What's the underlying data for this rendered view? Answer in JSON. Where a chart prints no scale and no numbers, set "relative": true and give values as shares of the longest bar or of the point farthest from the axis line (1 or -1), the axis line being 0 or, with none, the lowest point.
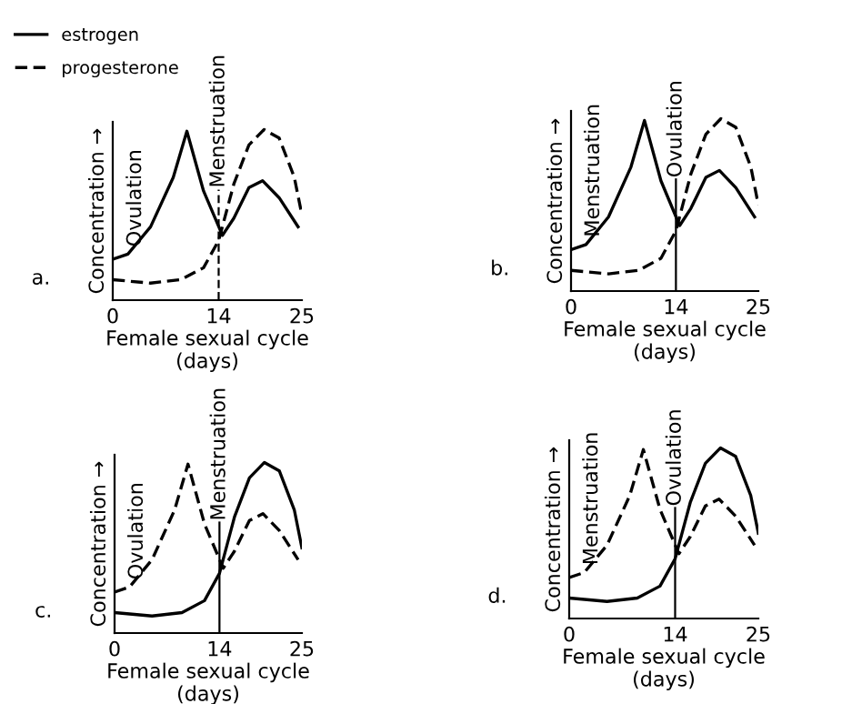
{
  "chart_data": [
    {
      "type": "line",
      "relative": true,
      "xlabel": "Female sexual cycle\n(days)",
      "ylabel": "Concentration →",
      "xlim": [
        0,
        25
      ],
      "xticks": [
        0,
        14,
        25
      ],
      "legend": "top left",
      "tick_labels": "x",
      "annotations": [
        "a.",
        "Ovulation"
      ],
      "ref_lines": [
        {
          "axis": "x",
          "value": 14,
          "label": "Menstruation",
          "line_style": "dashed",
          "color": "#000000"
        }
      ],
      "series": [
        {
          "name": "estrogen",
          "color": "#000000",
          "line_style": "solid",
          "x": [
            0,
            2,
            5,
            8,
            9.8,
            12,
            14.5,
            16,
            18,
            19.8,
            22,
            24.5
          ],
          "values": [
            0.24,
            0.27,
            0.43,
            0.72,
            0.99,
            0.64,
            0.38,
            0.48,
            0.66,
            0.7,
            0.6,
            0.43
          ]
        },
        {
          "name": "progesterone",
          "color": "#000000",
          "line_style": "dashed",
          "x": [
            0,
            5,
            9,
            12,
            14,
            16,
            18,
            20,
            22,
            24,
            25
          ],
          "values": [
            0.12,
            0.1,
            0.12,
            0.19,
            0.35,
            0.68,
            0.91,
            1.0,
            0.95,
            0.72,
            0.5
          ]
        }
      ]
    },
    {
      "type": "line",
      "relative": true,
      "xlabel": "Female sexual cycle\n(days)",
      "ylabel": "Concentration →",
      "xlim": [
        0,
        25
      ],
      "xticks": [
        0,
        14,
        25
      ],
      "tick_labels": "x",
      "annotations": [
        "b.",
        "Menstruation"
      ],
      "ref_lines": [
        {
          "axis": "x",
          "value": 14,
          "label": "Ovulation",
          "line_style": "solid",
          "color": "#000000"
        }
      ],
      "series": [
        {
          "color": "#000000",
          "line_style": "solid",
          "x": [
            0,
            2,
            5,
            8,
            9.8,
            12,
            14.5,
            16,
            18,
            19.8,
            22,
            24.5
          ],
          "values": [
            0.24,
            0.27,
            0.43,
            0.72,
            0.99,
            0.64,
            0.38,
            0.48,
            0.66,
            0.7,
            0.6,
            0.43
          ]
        },
        {
          "color": "#000000",
          "line_style": "dashed",
          "x": [
            0,
            5,
            9,
            12,
            14,
            16,
            18,
            20,
            22,
            24,
            25
          ],
          "values": [
            0.12,
            0.1,
            0.12,
            0.19,
            0.35,
            0.68,
            0.91,
            1.0,
            0.95,
            0.72,
            0.5
          ]
        }
      ]
    },
    {
      "type": "line",
      "relative": true,
      "xlabel": "Female sexual cycle\n(days)",
      "ylabel": "Concentration →",
      "xlim": [
        0,
        25
      ],
      "xticks": [
        0,
        14,
        25
      ],
      "tick_labels": "x",
      "annotations": [
        "c.",
        "Ovulation"
      ],
      "ref_lines": [
        {
          "axis": "x",
          "value": 14,
          "label": "Menstruation",
          "line_style": "solid",
          "color": "#000000"
        }
      ],
      "series": [
        {
          "color": "#000000",
          "line_style": "solid",
          "x": [
            0,
            5,
            9,
            12,
            14,
            16,
            18,
            20,
            22,
            24,
            25
          ],
          "values": [
            0.12,
            0.1,
            0.12,
            0.19,
            0.35,
            0.68,
            0.91,
            1.0,
            0.95,
            0.72,
            0.5
          ]
        },
        {
          "color": "#000000",
          "line_style": "dashed",
          "x": [
            0,
            2,
            5,
            8,
            9.8,
            12,
            14.5,
            16,
            18,
            19.8,
            22,
            24.5
          ],
          "values": [
            0.24,
            0.27,
            0.43,
            0.72,
            0.99,
            0.64,
            0.38,
            0.48,
            0.66,
            0.7,
            0.6,
            0.43
          ]
        }
      ]
    },
    {
      "type": "line",
      "relative": true,
      "xlabel": "Female sexual cycle\n(days)",
      "ylabel": "Concentration →",
      "xlim": [
        0,
        25
      ],
      "xticks": [
        0,
        14,
        25
      ],
      "tick_labels": "x",
      "annotations": [
        "d.",
        "Menstruation"
      ],
      "ref_lines": [
        {
          "axis": "x",
          "value": 14,
          "label": "Ovulation",
          "line_style": "solid",
          "color": "#000000"
        }
      ],
      "series": [
        {
          "color": "#000000",
          "line_style": "solid",
          "x": [
            0,
            5,
            9,
            12,
            14,
            16,
            18,
            20,
            22,
            24,
            25
          ],
          "values": [
            0.12,
            0.1,
            0.12,
            0.19,
            0.35,
            0.68,
            0.91,
            1.0,
            0.95,
            0.72,
            0.5
          ]
        },
        {
          "color": "#000000",
          "line_style": "dashed",
          "x": [
            0,
            2,
            5,
            8,
            9.8,
            12,
            14.5,
            16,
            18,
            19.8,
            22,
            24.5
          ],
          "values": [
            0.24,
            0.27,
            0.43,
            0.72,
            0.99,
            0.64,
            0.38,
            0.48,
            0.66,
            0.7,
            0.6,
            0.43
          ]
        }
      ]
    }
  ]
}
